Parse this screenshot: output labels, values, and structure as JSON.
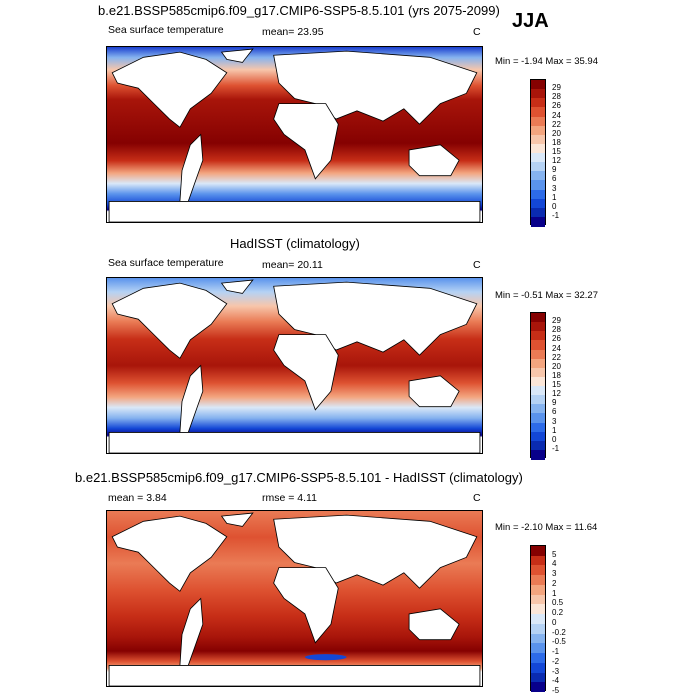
{
  "season": "JJA",
  "colors": {
    "sst_scale": [
      "#08008a",
      "#0a2bb0",
      "#1347d6",
      "#2d6be8",
      "#5a93ec",
      "#86b3ef",
      "#b5d2f4",
      "#dae8f8",
      "#fbe6d8",
      "#f7c6ab",
      "#f3a57f",
      "#ea7b55",
      "#de5231",
      "#c72e17",
      "#a8150a",
      "#850101"
    ],
    "diff_scale": [
      "#08008a",
      "#0a2bb0",
      "#1347d6",
      "#2d6be8",
      "#5a93ec",
      "#86b3ef",
      "#b5d2f4",
      "#dae8f8",
      "#fbe6d8",
      "#f7c6ab",
      "#f3a57f",
      "#ea7b55",
      "#de5231",
      "#c72e17",
      "#850101"
    ]
  },
  "panels": [
    {
      "title": "b.e21.BSSP585cmip6.f09_g17.CMIP6-SSP5-8.5.101 (yrs 2075-2099)",
      "left_label": "Sea surface temperature",
      "mid_label": "mean=  23.95",
      "units": "C",
      "minmax": "Min =  -1.94 Max =  35.94",
      "levels": [
        "29",
        "28",
        "26",
        "24",
        "22",
        "20",
        "18",
        "15",
        "12",
        "9",
        "6",
        "3",
        "1",
        "0",
        "-1"
      ]
    },
    {
      "title": "HadISST (climatology)",
      "left_label": "Sea surface temperature",
      "mid_label": "mean=  20.11",
      "units": "C",
      "minmax": "Min =  -0.51 Max =  32.27",
      "levels": [
        "29",
        "28",
        "26",
        "24",
        "22",
        "20",
        "18",
        "15",
        "12",
        "9",
        "6",
        "3",
        "1",
        "0",
        "-1"
      ]
    },
    {
      "title": "b.e21.BSSP585cmip6.f09_g17.CMIP6-SSP5-8.5.101 - HadISST (climatology)",
      "left_label": "mean =    3.84",
      "mid_label": "rmse =    4.11",
      "units": "C",
      "minmax": "Min =  -2.10 Max =  11.64",
      "levels": [
        "5",
        "4",
        "3",
        "2",
        "1",
        "0.5",
        "0.2",
        "0",
        "-0.2",
        "-0.5",
        "-1",
        "-2",
        "-3",
        "-4",
        "-5"
      ]
    }
  ]
}
